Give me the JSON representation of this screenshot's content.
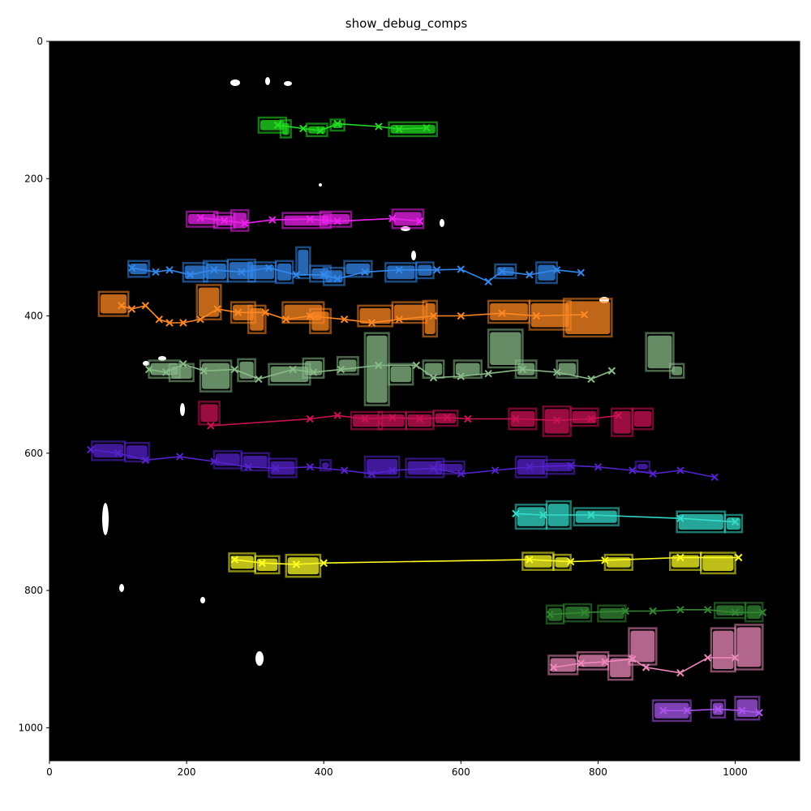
{
  "chart_data": {
    "type": "scatter",
    "title": "show_debug_comps",
    "xlabel": "",
    "ylabel": "",
    "xlim": [
      0,
      1094
    ],
    "ylim": [
      1048,
      0
    ],
    "xticks": [
      0,
      200,
      400,
      600,
      800,
      1000
    ],
    "yticks": [
      0,
      200,
      400,
      600,
      800,
      1000
    ],
    "grid": false,
    "background": "#000000",
    "series": [
      {
        "color": "#22dd22",
        "points": [
          [
            333,
            122
          ],
          [
            370,
            127
          ],
          [
            395,
            130
          ],
          [
            420,
            120
          ],
          [
            480,
            124
          ],
          [
            510,
            128
          ],
          [
            550,
            126
          ]
        ],
        "boxes": [
          [
            305,
            111,
            345,
            133
          ],
          [
            337,
            115,
            352,
            140
          ],
          [
            375,
            120,
            405,
            138
          ],
          [
            410,
            114,
            430,
            130
          ],
          [
            495,
            118,
            565,
            138
          ]
        ]
      },
      {
        "color": "#ee22ee",
        "points": [
          [
            220,
            257
          ],
          [
            255,
            261
          ],
          [
            285,
            265
          ],
          [
            325,
            260
          ],
          [
            380,
            259
          ],
          [
            420,
            262
          ],
          [
            500,
            258
          ],
          [
            540,
            262
          ]
        ],
        "boxes": [
          [
            200,
            248,
            245,
            270
          ],
          [
            240,
            250,
            270,
            272
          ],
          [
            265,
            246,
            290,
            276
          ],
          [
            340,
            250,
            410,
            272
          ],
          [
            395,
            248,
            440,
            270
          ],
          [
            500,
            245,
            545,
            272
          ]
        ]
      },
      {
        "color": "#3388ee",
        "points": [
          [
            120,
            330
          ],
          [
            155,
            336
          ],
          [
            175,
            333
          ],
          [
            205,
            340
          ],
          [
            240,
            333
          ],
          [
            280,
            336
          ],
          [
            320,
            330
          ],
          [
            360,
            340
          ],
          [
            400,
            340
          ],
          [
            420,
            346
          ],
          [
            460,
            336
          ],
          [
            510,
            333
          ],
          [
            565,
            333
          ],
          [
            600,
            332
          ],
          [
            640,
            350
          ],
          [
            660,
            335
          ],
          [
            700,
            340
          ],
          [
            740,
            333
          ],
          [
            775,
            337
          ]
        ],
        "boxes": [
          [
            115,
            320,
            145,
            343
          ],
          [
            195,
            323,
            230,
            350
          ],
          [
            225,
            320,
            260,
            350
          ],
          [
            260,
            318,
            300,
            350
          ],
          [
            290,
            322,
            330,
            350
          ],
          [
            330,
            320,
            355,
            352
          ],
          [
            360,
            300,
            380,
            345
          ],
          [
            380,
            327,
            410,
            350
          ],
          [
            400,
            330,
            430,
            355
          ],
          [
            430,
            320,
            470,
            343
          ],
          [
            490,
            323,
            535,
            350
          ],
          [
            535,
            322,
            560,
            345
          ],
          [
            650,
            325,
            680,
            345
          ],
          [
            710,
            322,
            740,
            352
          ]
        ]
      },
      {
        "color": "#ff8822",
        "points": [
          [
            105,
            385
          ],
          [
            120,
            390
          ],
          [
            140,
            385
          ],
          [
            160,
            405
          ],
          [
            175,
            410
          ],
          [
            195,
            410
          ],
          [
            220,
            405
          ],
          [
            245,
            390
          ],
          [
            275,
            395
          ],
          [
            315,
            395
          ],
          [
            345,
            405
          ],
          [
            380,
            400
          ],
          [
            430,
            405
          ],
          [
            470,
            410
          ],
          [
            510,
            405
          ],
          [
            560,
            400
          ],
          [
            600,
            400
          ],
          [
            660,
            396
          ],
          [
            710,
            400
          ],
          [
            780,
            398
          ]
        ],
        "boxes": [
          [
            72,
            365,
            115,
            400
          ],
          [
            215,
            355,
            250,
            405
          ],
          [
            265,
            380,
            300,
            410
          ],
          [
            290,
            385,
            315,
            425
          ],
          [
            340,
            380,
            400,
            410
          ],
          [
            380,
            390,
            410,
            425
          ],
          [
            450,
            385,
            500,
            415
          ],
          [
            500,
            380,
            550,
            410
          ],
          [
            545,
            378,
            565,
            430
          ],
          [
            640,
            378,
            700,
            410
          ],
          [
            700,
            378,
            760,
            420
          ],
          [
            750,
            375,
            820,
            430
          ]
        ]
      },
      {
        "color": "#88bb88",
        "points": [
          [
            145,
            478
          ],
          [
            170,
            482
          ],
          [
            195,
            470
          ],
          [
            225,
            480
          ],
          [
            270,
            478
          ],
          [
            305,
            492
          ],
          [
            355,
            478
          ],
          [
            385,
            482
          ],
          [
            425,
            478
          ],
          [
            480,
            472
          ],
          [
            535,
            472
          ],
          [
            560,
            490
          ],
          [
            600,
            488
          ],
          [
            640,
            484
          ],
          [
            690,
            478
          ],
          [
            740,
            482
          ],
          [
            790,
            492
          ],
          [
            820,
            480
          ]
        ],
        "boxes": [
          [
            145,
            465,
            190,
            490
          ],
          [
            175,
            470,
            210,
            495
          ],
          [
            220,
            465,
            265,
            510
          ],
          [
            275,
            463,
            300,
            495
          ],
          [
            320,
            470,
            380,
            500
          ],
          [
            370,
            462,
            400,
            490
          ],
          [
            420,
            460,
            450,
            485
          ],
          [
            460,
            425,
            495,
            530
          ],
          [
            495,
            470,
            530,
            500
          ],
          [
            545,
            465,
            575,
            490
          ],
          [
            590,
            465,
            630,
            490
          ],
          [
            640,
            420,
            690,
            475
          ],
          [
            680,
            465,
            710,
            490
          ],
          [
            740,
            465,
            770,
            490
          ],
          [
            870,
            425,
            910,
            480
          ],
          [
            905,
            470,
            925,
            490
          ]
        ]
      },
      {
        "color": "#cc1155",
        "points": [
          [
            235,
            560
          ],
          [
            380,
            550
          ],
          [
            420,
            545
          ],
          [
            460,
            550
          ],
          [
            500,
            548
          ],
          [
            540,
            550
          ],
          [
            580,
            548
          ],
          [
            610,
            550
          ],
          [
            680,
            550
          ],
          [
            740,
            552
          ],
          [
            790,
            550
          ],
          [
            830,
            545
          ]
        ],
        "boxes": [
          [
            218,
            525,
            248,
            558
          ],
          [
            440,
            540,
            485,
            565
          ],
          [
            480,
            540,
            520,
            565
          ],
          [
            520,
            540,
            560,
            565
          ],
          [
            560,
            538,
            595,
            560
          ],
          [
            670,
            535,
            710,
            565
          ],
          [
            720,
            532,
            760,
            575
          ],
          [
            760,
            535,
            800,
            560
          ],
          [
            820,
            535,
            850,
            575
          ],
          [
            850,
            535,
            880,
            565
          ]
        ]
      },
      {
        "color": "#5522cc",
        "points": [
          [
            60,
            595
          ],
          [
            100,
            600
          ],
          [
            140,
            610
          ],
          [
            190,
            605
          ],
          [
            240,
            612
          ],
          [
            290,
            620
          ],
          [
            330,
            622
          ],
          [
            380,
            620
          ],
          [
            430,
            625
          ],
          [
            470,
            630
          ],
          [
            500,
            625
          ],
          [
            560,
            622
          ],
          [
            600,
            630
          ],
          [
            650,
            625
          ],
          [
            700,
            620
          ],
          [
            760,
            618
          ],
          [
            800,
            620
          ],
          [
            850,
            625
          ],
          [
            880,
            630
          ],
          [
            920,
            625
          ],
          [
            970,
            635
          ]
        ],
        "boxes": [
          [
            62,
            583,
            110,
            610
          ],
          [
            110,
            585,
            145,
            612
          ],
          [
            240,
            597,
            280,
            622
          ],
          [
            280,
            600,
            320,
            625
          ],
          [
            320,
            608,
            360,
            635
          ],
          [
            395,
            610,
            410,
            625
          ],
          [
            460,
            605,
            510,
            635
          ],
          [
            520,
            608,
            575,
            635
          ],
          [
            565,
            612,
            605,
            630
          ],
          [
            680,
            605,
            725,
            635
          ],
          [
            720,
            610,
            765,
            630
          ],
          [
            855,
            612,
            875,
            627
          ]
        ]
      },
      {
        "color": "#33ddcc",
        "points": [
          [
            680,
            688
          ],
          [
            720,
            690
          ],
          [
            790,
            690
          ],
          [
            920,
            695
          ],
          [
            1000,
            700
          ]
        ],
        "boxes": [
          [
            680,
            675,
            725,
            710
          ],
          [
            725,
            670,
            760,
            710
          ],
          [
            765,
            680,
            830,
            705
          ],
          [
            915,
            685,
            985,
            715
          ],
          [
            985,
            690,
            1010,
            715
          ]
        ]
      },
      {
        "color": "#ffff22",
        "points": [
          [
            270,
            755
          ],
          [
            310,
            760
          ],
          [
            360,
            762
          ],
          [
            400,
            760
          ],
          [
            700,
            755
          ],
          [
            760,
            758
          ],
          [
            810,
            756
          ],
          [
            920,
            752
          ],
          [
            1005,
            752
          ]
        ],
        "boxes": [
          [
            262,
            746,
            300,
            772
          ],
          [
            300,
            750,
            335,
            775
          ],
          [
            345,
            748,
            395,
            780
          ],
          [
            690,
            745,
            735,
            770
          ],
          [
            735,
            748,
            760,
            770
          ],
          [
            810,
            748,
            850,
            770
          ],
          [
            905,
            745,
            950,
            770
          ],
          [
            950,
            745,
            1000,
            775
          ]
        ]
      },
      {
        "color": "#338833",
        "points": [
          [
            730,
            835
          ],
          [
            780,
            832
          ],
          [
            840,
            830
          ],
          [
            880,
            830
          ],
          [
            920,
            828
          ],
          [
            960,
            828
          ],
          [
            1000,
            832
          ],
          [
            1040,
            832
          ]
        ],
        "boxes": [
          [
            725,
            822,
            750,
            848
          ],
          [
            750,
            820,
            790,
            845
          ],
          [
            800,
            822,
            840,
            845
          ],
          [
            970,
            818,
            1015,
            840
          ],
          [
            1015,
            818,
            1040,
            845
          ]
        ]
      },
      {
        "color": "#ee88bb",
        "points": [
          [
            735,
            912
          ],
          [
            775,
            906
          ],
          [
            810,
            904
          ],
          [
            850,
            900
          ],
          [
            870,
            912
          ],
          [
            920,
            920
          ],
          [
            960,
            898
          ],
          [
            1000,
            898
          ]
        ],
        "boxes": [
          [
            728,
            895,
            770,
            922
          ],
          [
            770,
            890,
            815,
            915
          ],
          [
            815,
            895,
            850,
            930
          ],
          [
            845,
            855,
            885,
            908
          ],
          [
            965,
            855,
            1000,
            918
          ],
          [
            1000,
            850,
            1040,
            915
          ]
        ]
      },
      {
        "color": "#aa55ee",
        "points": [
          [
            895,
            975
          ],
          [
            930,
            975
          ],
          [
            975,
            973
          ],
          [
            1010,
            975
          ],
          [
            1035,
            978
          ]
        ],
        "boxes": [
          [
            880,
            960,
            935,
            990
          ],
          [
            965,
            960,
            985,
            985
          ],
          [
            1000,
            955,
            1035,
            988
          ]
        ]
      }
    ]
  }
}
